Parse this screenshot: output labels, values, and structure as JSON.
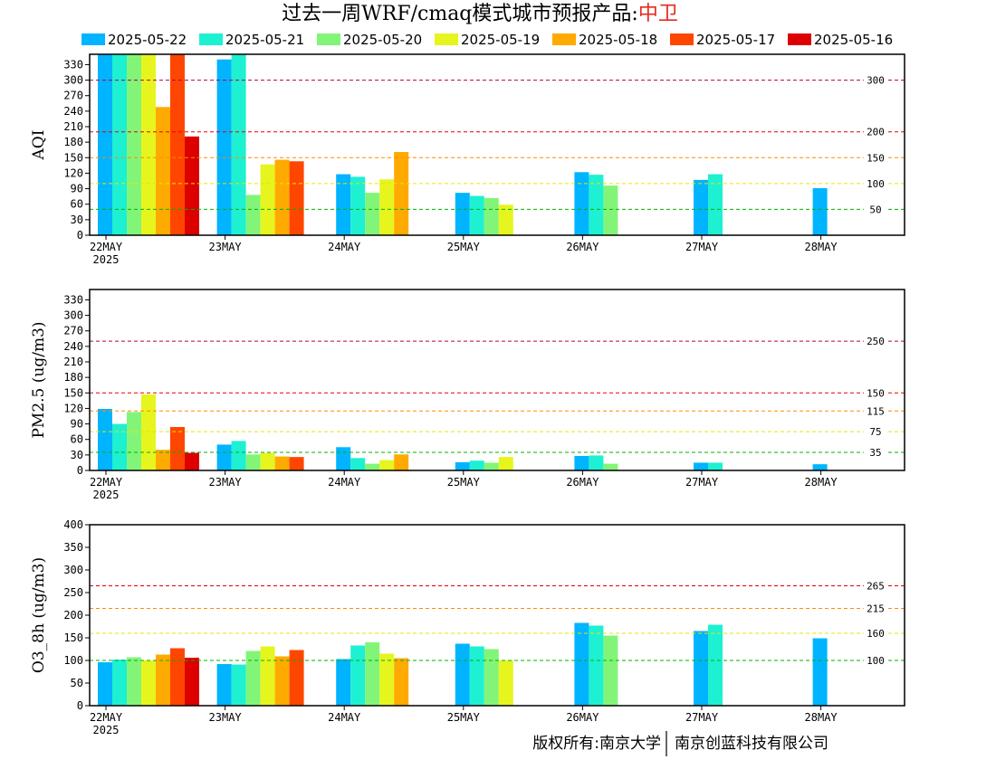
{
  "title": {
    "prefix": "过去一周WRF/cmaq模式城市预报产品:",
    "city": "中卫",
    "city_color": "#e8291f"
  },
  "legend": [
    {
      "label": "2025-05-22",
      "color": "#00b4ff"
    },
    {
      "label": "2025-05-21",
      "color": "#1ef0d2"
    },
    {
      "label": "2025-05-20",
      "color": "#82f578"
    },
    {
      "label": "2025-05-19",
      "color": "#e6f51e"
    },
    {
      "label": "2025-05-18",
      "color": "#ffaa00"
    },
    {
      "label": "2025-05-17",
      "color": "#ff4600"
    },
    {
      "label": "2025-05-16",
      "color": "#dc0000"
    }
  ],
  "footer": {
    "left": "版权所有:南京大学",
    "right": "南京创蓝科技有限公司"
  },
  "chart_data": [
    {
      "type": "bar",
      "ylabel": "AQI",
      "ylim": [
        0,
        350
      ],
      "yticks": [
        0,
        30,
        60,
        90,
        120,
        150,
        180,
        210,
        240,
        270,
        300,
        330
      ],
      "categories": [
        "22MAY",
        "23MAY",
        "24MAY",
        "25MAY",
        "26MAY",
        "27MAY",
        "28MAY"
      ],
      "year_label": "2025",
      "ref_lines": [
        {
          "value": 300,
          "label": "300",
          "color": "#b4004b"
        },
        {
          "value": 200,
          "label": "200",
          "color": "#e60000"
        },
        {
          "value": 150,
          "label": "150",
          "color": "#ff8c00"
        },
        {
          "value": 100,
          "label": "100",
          "color": "#e6e600"
        },
        {
          "value": 50,
          "label": "50",
          "color": "#00b400"
        }
      ],
      "series": [
        {
          "name": "2025-05-22",
          "values": [
            350,
            340,
            118,
            82,
            122,
            107,
            91
          ]
        },
        {
          "name": "2025-05-21",
          "values": [
            350,
            350,
            113,
            76,
            117,
            118,
            null
          ]
        },
        {
          "name": "2025-05-20",
          "values": [
            350,
            78,
            82,
            72,
            96,
            null,
            null
          ]
        },
        {
          "name": "2025-05-19",
          "values": [
            350,
            137,
            108,
            59,
            null,
            null,
            null
          ]
        },
        {
          "name": "2025-05-18",
          "values": [
            248,
            146,
            161,
            null,
            null,
            null,
            null
          ]
        },
        {
          "name": "2025-05-17",
          "values": [
            350,
            143,
            null,
            null,
            null,
            null,
            null
          ]
        },
        {
          "name": "2025-05-16",
          "values": [
            191,
            null,
            null,
            null,
            null,
            null,
            null
          ]
        }
      ]
    },
    {
      "type": "bar",
      "ylabel": "PM2.5 (ug/m3)",
      "ylim": [
        0,
        350
      ],
      "yticks": [
        0,
        30,
        60,
        90,
        120,
        150,
        180,
        210,
        240,
        270,
        300,
        330
      ],
      "categories": [
        "22MAY",
        "23MAY",
        "24MAY",
        "25MAY",
        "26MAY",
        "27MAY",
        "28MAY"
      ],
      "year_label": "2025",
      "ref_lines": [
        {
          "value": 250,
          "label": "250",
          "color": "#b4004b"
        },
        {
          "value": 150,
          "label": "150",
          "color": "#e60000"
        },
        {
          "value": 115,
          "label": "115",
          "color": "#ff8c00"
        },
        {
          "value": 75,
          "label": "75",
          "color": "#e6e600"
        },
        {
          "value": 35,
          "label": "35",
          "color": "#00b400"
        }
      ],
      "series": [
        {
          "name": "2025-05-22",
          "values": [
            119,
            50,
            45,
            16,
            28,
            15,
            12
          ]
        },
        {
          "name": "2025-05-21",
          "values": [
            90,
            57,
            24,
            19,
            29,
            15,
            null
          ]
        },
        {
          "name": "2025-05-20",
          "values": [
            113,
            31,
            13,
            15,
            13,
            null,
            null
          ]
        },
        {
          "name": "2025-05-19",
          "values": [
            147,
            34,
            20,
            26,
            null,
            null,
            null
          ]
        },
        {
          "name": "2025-05-18",
          "values": [
            40,
            27,
            31,
            null,
            null,
            null,
            null
          ]
        },
        {
          "name": "2025-05-17",
          "values": [
            84,
            26,
            null,
            null,
            null,
            null,
            null
          ]
        },
        {
          "name": "2025-05-16",
          "values": [
            34,
            null,
            null,
            null,
            null,
            null,
            null
          ]
        }
      ]
    },
    {
      "type": "bar",
      "ylabel": "O3_8h (ug/m3)",
      "ylim": [
        0,
        400
      ],
      "yticks": [
        0,
        50,
        100,
        150,
        200,
        250,
        300,
        350,
        400
      ],
      "categories": [
        "22MAY",
        "23MAY",
        "24MAY",
        "25MAY",
        "26MAY",
        "27MAY",
        "28MAY"
      ],
      "year_label": "2025",
      "ref_lines": [
        {
          "value": 265,
          "label": "265",
          "color": "#e60000"
        },
        {
          "value": 215,
          "label": "215",
          "color": "#ff8c00"
        },
        {
          "value": 160,
          "label": "160",
          "color": "#e6e600"
        },
        {
          "value": 100,
          "label": "100",
          "color": "#00b400"
        }
      ],
      "series": [
        {
          "name": "2025-05-22",
          "values": [
            96,
            92,
            103,
            137,
            183,
            165,
            149
          ]
        },
        {
          "name": "2025-05-21",
          "values": [
            102,
            91,
            133,
            131,
            177,
            179,
            null
          ]
        },
        {
          "name": "2025-05-20",
          "values": [
            107,
            121,
            140,
            125,
            155,
            null,
            null
          ]
        },
        {
          "name": "2025-05-19",
          "values": [
            100,
            131,
            115,
            100,
            null,
            null,
            null
          ]
        },
        {
          "name": "2025-05-18",
          "values": [
            113,
            109,
            105,
            null,
            null,
            null,
            null
          ]
        },
        {
          "name": "2025-05-17",
          "values": [
            127,
            123,
            null,
            null,
            null,
            null,
            null
          ]
        },
        {
          "name": "2025-05-16",
          "values": [
            106,
            null,
            null,
            null,
            null,
            null,
            null
          ]
        }
      ]
    }
  ]
}
